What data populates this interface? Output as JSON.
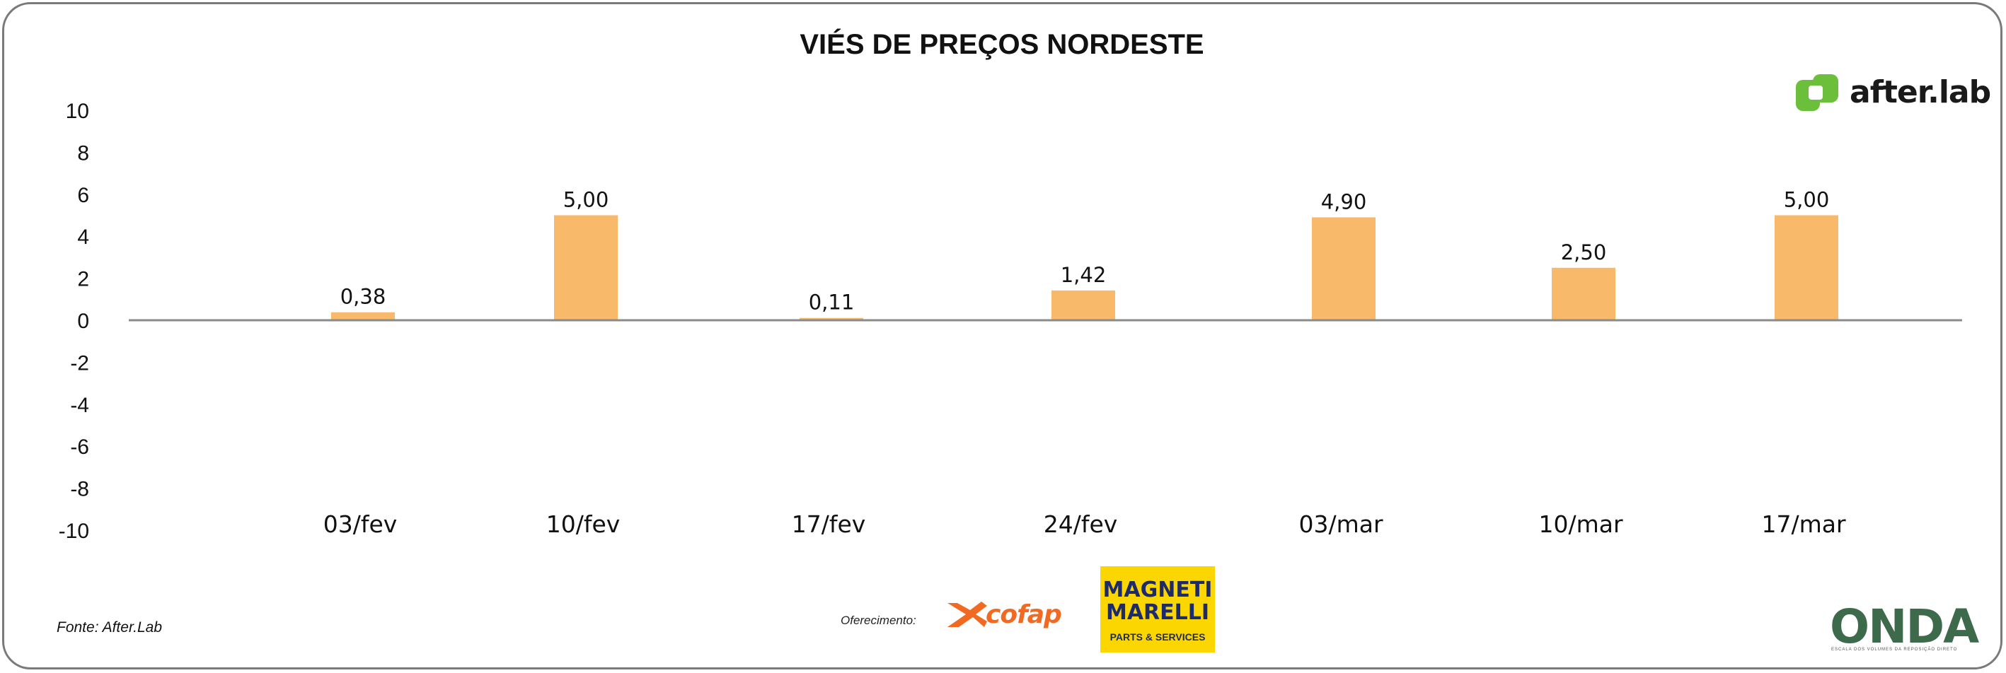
{
  "chart_data": {
    "type": "bar",
    "title": "VIÉS DE PREÇOS NORDESTE",
    "xlabel": "",
    "ylabel": "",
    "categories": [
      "03/fev",
      "10/fev",
      "17/fev",
      "24/fev",
      "03/mar",
      "10/mar",
      "17/mar"
    ],
    "values": [
      0.38,
      5.0,
      0.11,
      1.42,
      4.9,
      2.5,
      5.0
    ],
    "value_labels": [
      "0,38",
      "5,00",
      "0,11",
      "1,42",
      "4,90",
      "2,50",
      "5,00"
    ],
    "ylim": [
      -10,
      10
    ],
    "yticks": [
      10,
      8,
      6,
      4,
      2,
      0,
      -2,
      -4,
      -6,
      -8,
      -10
    ],
    "grid": false,
    "legend": "none",
    "bar_color": "#f9b96a"
  },
  "footer": {
    "source": "Fonte: After.Lab",
    "sponsor_label": "Oferecimento:"
  },
  "logos": {
    "afterlab": "after.lab",
    "cofap": "cofap",
    "magneti_line1": "MAGNETI",
    "magneti_line2": "MARELLI",
    "magneti_sub": "PARTS & SERVICES",
    "onda": "ONDA",
    "onda_sub": "ESCALA DOS VOLUMES DA REPOSIÇÃO DIRETO"
  },
  "colors": {
    "afterlab_green": "#6cbf3b",
    "cofap_orange": "#f26a21",
    "magneti_yellow": "#fcd600",
    "magneti_blue": "#1d2b6b"
  }
}
